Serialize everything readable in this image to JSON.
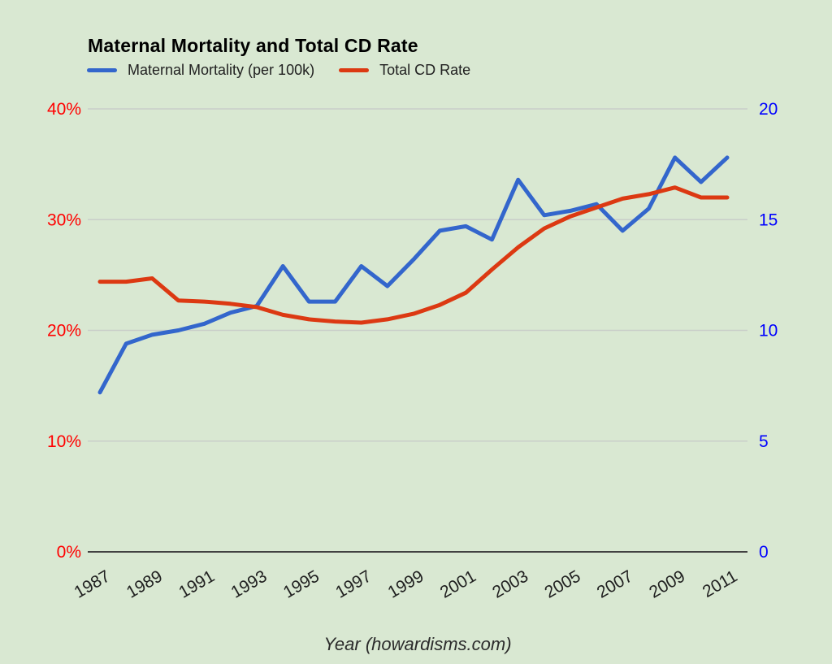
{
  "page": {
    "background": "#d9e8d2"
  },
  "chart_data": {
    "type": "line",
    "title": "Maternal Mortality and Total CD Rate",
    "xlabel": "Year (howardisms.com)",
    "legend_position": "top",
    "grid": true,
    "x": [
      1987,
      1988,
      1989,
      1990,
      1991,
      1992,
      1993,
      1994,
      1995,
      1996,
      1997,
      1998,
      1999,
      2000,
      2001,
      2002,
      2003,
      2004,
      2005,
      2006,
      2007,
      2008,
      2009,
      2010,
      2011
    ],
    "x_axis": {
      "color": "#212121",
      "ticks": [
        {
          "v": 1987,
          "label": "1987"
        },
        {
          "v": 1989,
          "label": "1989"
        },
        {
          "v": 1991,
          "label": "1991"
        },
        {
          "v": 1993,
          "label": "1993"
        },
        {
          "v": 1995,
          "label": "1995"
        },
        {
          "v": 1997,
          "label": "1997"
        },
        {
          "v": 1999,
          "label": "1999"
        },
        {
          "v": 2001,
          "label": "2001"
        },
        {
          "v": 2003,
          "label": "2003"
        },
        {
          "v": 2005,
          "label": "2005"
        },
        {
          "v": 2007,
          "label": "2007"
        },
        {
          "v": 2009,
          "label": "2009"
        },
        {
          "v": 2011,
          "label": "2011"
        }
      ]
    },
    "left_axis": {
      "min": 0,
      "max": 40,
      "color": "#ff0000",
      "ticks": [
        {
          "v": 0,
          "label": "0%"
        },
        {
          "v": 10,
          "label": "10%"
        },
        {
          "v": 20,
          "label": "20%"
        },
        {
          "v": 30,
          "label": "30%"
        },
        {
          "v": 40,
          "label": "40%"
        }
      ]
    },
    "right_axis": {
      "min": 0,
      "max": 20,
      "color": "#0000ff",
      "ticks": [
        {
          "v": 0,
          "label": "0"
        },
        {
          "v": 5,
          "label": "5"
        },
        {
          "v": 10,
          "label": "10"
        },
        {
          "v": 15,
          "label": "15"
        },
        {
          "v": 20,
          "label": "20"
        }
      ]
    },
    "series": [
      {
        "name": "Maternal Mortality (per 100k)",
        "color": "#3366cc",
        "axis": "right",
        "values": [
          7.2,
          9.4,
          9.8,
          10.0,
          10.3,
          10.8,
          11.1,
          12.9,
          11.3,
          11.3,
          12.9,
          12.0,
          13.2,
          14.5,
          14.7,
          14.1,
          16.8,
          15.2,
          15.4,
          15.7,
          14.5,
          15.5,
          17.8,
          16.7,
          17.8
        ]
      },
      {
        "name": "Total CD Rate",
        "color": "#dc3912",
        "axis": "left",
        "values": [
          24.4,
          24.4,
          24.7,
          22.7,
          22.6,
          22.4,
          22.1,
          21.4,
          21.0,
          20.8,
          20.7,
          21.0,
          21.5,
          22.3,
          23.4,
          25.5,
          27.5,
          29.2,
          30.3,
          31.1,
          31.9,
          32.3,
          32.9,
          32.0,
          32.0
        ]
      }
    ],
    "grid_color": "#c9cec9",
    "axis_line_color": "#424242"
  }
}
